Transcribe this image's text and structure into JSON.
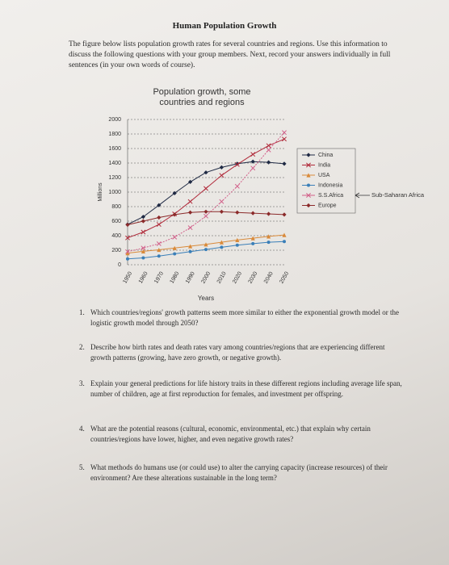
{
  "header": {
    "title": "Human Population Growth"
  },
  "intro": "The figure below lists population growth rates for several countries and regions. Use this information to discuss the following questions with your group members. Next, record your answers individually in full sentences (in your own words of course).",
  "chart_data": {
    "type": "line",
    "title": "Population growth, some countries and regions",
    "x": [
      1950,
      1960,
      1970,
      1980,
      1990,
      2000,
      2010,
      2020,
      2030,
      2040,
      2050
    ],
    "xlabel": "Years",
    "ylabel": "Millions",
    "ylim": [
      0,
      2000
    ],
    "yticks": [
      0,
      200,
      400,
      600,
      800,
      1000,
      1200,
      1400,
      1600,
      1800,
      2000
    ],
    "grid": true,
    "legend": "right",
    "annotation": "Sub-Saharan Africa",
    "series": [
      {
        "name": "China",
        "color": "#1f2a44",
        "marker": "diamond",
        "values": [
          555,
          660,
          820,
          985,
          1140,
          1270,
          1340,
          1390,
          1420,
          1410,
          1390
        ]
      },
      {
        "name": "India",
        "color": "#b02a3a",
        "marker": "cross",
        "values": [
          370,
          450,
          555,
          700,
          870,
          1050,
          1230,
          1380,
          1520,
          1640,
          1730
        ]
      },
      {
        "name": "USA",
        "color": "#d98a3a",
        "marker": "triangle",
        "values": [
          160,
          185,
          205,
          230,
          255,
          280,
          310,
          340,
          365,
          390,
          410
        ]
      },
      {
        "name": "Indonesia",
        "color": "#3a7fb8",
        "marker": "circle",
        "values": [
          80,
          95,
          120,
          150,
          180,
          210,
          240,
          270,
          290,
          310,
          320
        ]
      },
      {
        "name": "S.S.Africa",
        "color": "#d2608a",
        "marker": "cross",
        "values": [
          180,
          230,
          290,
          380,
          510,
          670,
          870,
          1080,
          1330,
          1580,
          1820
        ]
      },
      {
        "name": "Europe",
        "color": "#8b2a2a",
        "marker": "diamond",
        "values": [
          550,
          600,
          650,
          690,
          720,
          730,
          730,
          720,
          710,
          700,
          690
        ]
      }
    ]
  },
  "questions": [
    {
      "number": "1.",
      "text": "Which countries/regions' growth patterns seem more similar to either the exponential growth model or the logistic growth model through 2050?"
    },
    {
      "number": "2.",
      "text": "Describe how birth rates and death rates vary among countries/regions that are experiencing different growth patterns (growing, have zero growth, or negative growth)."
    },
    {
      "number": "3.",
      "text": "Explain your general predictions for life history traits in these different regions including average life span, number of children, age at first reproduction for females, and investment per offspring."
    },
    {
      "number": "4.",
      "text": "What are the potential reasons (cultural, economic, environmental, etc.) that explain why certain countries/regions have lower, higher, and even negative growth rates?"
    },
    {
      "number": "5.",
      "text": "What methods do humans use (or could use) to alter the carrying capacity (increase resources) of their environment? Are these alterations sustainable in the long term?"
    }
  ]
}
